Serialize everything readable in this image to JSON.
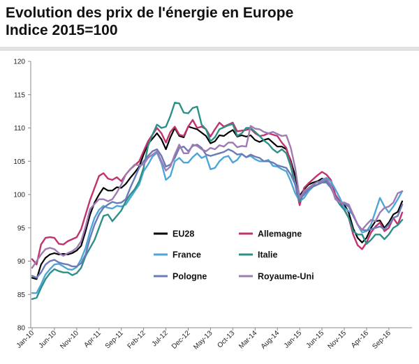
{
  "header": {
    "title_line1": "Evolution des prix de l'énergie en Europe",
    "title_line2": "Indice 2015=100"
  },
  "chart_data": {
    "type": "line",
    "title": "Evolution des prix de l'énergie en Europe",
    "subtitle": "Indice 2015=100",
    "ylim": [
      80,
      120
    ],
    "yticks": [
      80,
      85,
      90,
      95,
      100,
      105,
      110,
      115,
      120
    ],
    "grid": false,
    "legend_position": "bottom-center",
    "x_tick_labels": [
      "Jan-10",
      "Jun-10",
      "Nov-10",
      "Apr-11",
      "Sep-11",
      "Feb-12",
      "Jul-12",
      "Dec-12",
      "May-13",
      "Oct-13",
      "Mar-14",
      "Aug-14",
      "Jan-15",
      "Jun-15",
      "Nov-15",
      "Apr-16",
      "Sep-16"
    ],
    "x": [
      "Jan-10",
      "Feb-10",
      "Mar-10",
      "Apr-10",
      "May-10",
      "Jun-10",
      "Jul-10",
      "Aug-10",
      "Sep-10",
      "Oct-10",
      "Nov-10",
      "Dec-10",
      "Jan-11",
      "Feb-11",
      "Mar-11",
      "Apr-11",
      "May-11",
      "Jun-11",
      "Jul-11",
      "Aug-11",
      "Sep-11",
      "Oct-11",
      "Nov-11",
      "Dec-11",
      "Jan-12",
      "Feb-12",
      "Mar-12",
      "Apr-12",
      "May-12",
      "Jun-12",
      "Jul-12",
      "Aug-12",
      "Sep-12",
      "Oct-12",
      "Nov-12",
      "Dec-12",
      "Jan-13",
      "Feb-13",
      "Mar-13",
      "Apr-13",
      "May-13",
      "Jun-13",
      "Jul-13",
      "Aug-13",
      "Sep-13",
      "Oct-13",
      "Nov-13",
      "Dec-13",
      "Jan-14",
      "Feb-14",
      "Mar-14",
      "Apr-14",
      "May-14",
      "Jun-14",
      "Jul-14",
      "Aug-14",
      "Sep-14",
      "Oct-14",
      "Nov-14",
      "Dec-14",
      "Jan-15",
      "Feb-15",
      "Mar-15",
      "Apr-15",
      "May-15",
      "Jun-15",
      "Jul-15",
      "Aug-15",
      "Sep-15",
      "Oct-15",
      "Nov-15",
      "Dec-15",
      "Jan-16",
      "Feb-16",
      "Mar-16",
      "Apr-16",
      "May-16",
      "Jun-16",
      "Jul-16",
      "Aug-16",
      "Sep-16",
      "Oct-16",
      "Nov-16",
      "Dec-16"
    ],
    "series": [
      {
        "name": "EU28",
        "color": "#000000",
        "values": [
          87.5,
          87.3,
          89.5,
          90.5,
          91.0,
          91.2,
          91.0,
          91.1,
          91.0,
          91.2,
          91.6,
          92.3,
          94.5,
          97.0,
          98.8,
          100.0,
          101.0,
          100.6,
          100.6,
          101.1,
          101.0,
          101.6,
          102.5,
          103.3,
          104.2,
          106.0,
          107.6,
          108.4,
          109.2,
          108.3,
          106.8,
          108.6,
          110.0,
          108.8,
          108.6,
          110.2,
          110.0,
          109.8,
          109.3,
          108.8,
          107.7,
          108.0,
          108.9,
          108.8,
          109.3,
          109.7,
          108.7,
          108.9,
          108.7,
          108.9,
          108.2,
          107.9,
          108.2,
          108.4,
          107.8,
          107.2,
          107.2,
          106.8,
          105.1,
          102.8,
          99.8,
          100.8,
          101.5,
          101.8,
          102.0,
          102.4,
          102.2,
          101.3,
          99.8,
          99.0,
          98.5,
          97.3,
          94.9,
          93.5,
          92.8,
          93.5,
          95.0,
          96.0,
          96.1,
          95.0,
          95.8,
          97.0,
          97.4,
          99.0
        ]
      },
      {
        "name": "Allemagne",
        "color": "#c0336f",
        "values": [
          90.3,
          89.5,
          92.5,
          93.5,
          93.6,
          93.5,
          92.6,
          92.5,
          93.0,
          93.3,
          93.6,
          94.8,
          97.0,
          99.2,
          101.0,
          102.8,
          103.2,
          102.4,
          102.2,
          102.6,
          102.0,
          103.0,
          103.8,
          104.4,
          105.0,
          106.5,
          108.0,
          109.0,
          110.0,
          109.2,
          107.8,
          109.4,
          110.2,
          109.0,
          108.8,
          110.2,
          111.2,
          110.0,
          110.2,
          109.8,
          108.7,
          109.8,
          110.8,
          110.2,
          110.5,
          110.8,
          109.5,
          109.6,
          109.7,
          109.9,
          109.2,
          108.8,
          108.9,
          109.2,
          109.0,
          108.8,
          107.8,
          107.0,
          104.8,
          101.5,
          98.4,
          101.0,
          101.7,
          102.3,
          102.9,
          103.4,
          103.0,
          102.2,
          100.0,
          99.0,
          97.8,
          96.5,
          94.0,
          92.4,
          91.8,
          92.8,
          94.3,
          95.2,
          95.8,
          94.5,
          95.0,
          96.5,
          95.5,
          97.3
        ]
      },
      {
        "name": "France",
        "color": "#4ea6d8",
        "values": [
          85.2,
          85.2,
          86.5,
          88.0,
          88.8,
          89.5,
          89.6,
          89.2,
          88.8,
          88.7,
          89.1,
          90.3,
          92.0,
          94.5,
          96.5,
          97.7,
          98.3,
          98.0,
          97.9,
          98.3,
          98.2,
          98.5,
          99.5,
          100.5,
          101.5,
          103.5,
          104.5,
          105.7,
          106.3,
          104.7,
          102.2,
          102.8,
          105.0,
          105.5,
          104.8,
          104.8,
          105.6,
          106.2,
          105.5,
          105.8,
          103.8,
          104.0,
          105.0,
          105.6,
          105.8,
          104.8,
          105.2,
          106.1,
          105.6,
          105.8,
          105.3,
          105.0,
          105.0,
          105.2,
          104.3,
          104.2,
          103.8,
          103.5,
          102.0,
          100.2,
          99.0,
          99.5,
          100.5,
          101.2,
          101.5,
          102.2,
          102.5,
          102.0,
          100.8,
          99.5,
          98.0,
          97.5,
          97.0,
          95.5,
          94.3,
          94.5,
          95.5,
          97.5,
          99.5,
          98.2,
          97.3,
          98.2,
          99.3,
          100.5
        ]
      },
      {
        "name": "Italie",
        "color": "#2d9088",
        "values": [
          84.3,
          84.5,
          86.0,
          87.3,
          88.2,
          88.8,
          88.5,
          88.3,
          88.3,
          87.9,
          88.2,
          89.0,
          90.8,
          92.0,
          93.2,
          95.0,
          96.8,
          97.0,
          96.0,
          96.8,
          97.6,
          99.0,
          100.0,
          100.8,
          102.0,
          104.0,
          107.3,
          109.0,
          110.5,
          110.0,
          110.2,
          111.8,
          113.8,
          113.7,
          112.3,
          112.2,
          113.0,
          113.2,
          110.5,
          109.8,
          108.0,
          108.6,
          109.8,
          110.1,
          110.4,
          110.6,
          108.8,
          109.2,
          110.0,
          110.0,
          109.4,
          108.8,
          108.1,
          107.6,
          106.8,
          106.3,
          106.8,
          106.2,
          104.2,
          101.5,
          99.0,
          100.2,
          100.8,
          101.2,
          101.5,
          101.8,
          102.0,
          101.2,
          99.5,
          98.5,
          97.7,
          96.5,
          94.5,
          94.0,
          94.0,
          92.6,
          93.2,
          94.0,
          94.0,
          93.3,
          94.0,
          95.0,
          95.4,
          96.2
        ]
      },
      {
        "name": "Pologne",
        "color": "#6a7bb8",
        "values": [
          87.8,
          87.5,
          88.3,
          89.5,
          90.0,
          90.2,
          89.8,
          89.6,
          89.5,
          89.2,
          89.2,
          89.7,
          91.0,
          93.5,
          95.5,
          97.0,
          98.0,
          98.5,
          98.9,
          98.7,
          98.8,
          99.3,
          101.0,
          102.5,
          104.0,
          105.0,
          105.8,
          106.5,
          106.8,
          105.8,
          104.2,
          104.5,
          105.5,
          107.0,
          107.2,
          106.5,
          107.3,
          107.5,
          107.0,
          106.0,
          105.8,
          106.0,
          106.2,
          106.4,
          106.8,
          106.5,
          106.0,
          106.1,
          105.6,
          106.0,
          105.7,
          105.5,
          105.0,
          105.0,
          104.8,
          104.4,
          104.2,
          104.0,
          103.0,
          101.5,
          99.3,
          100.0,
          100.8,
          101.3,
          101.5,
          101.8,
          101.8,
          101.0,
          99.7,
          98.8,
          98.6,
          98.2,
          96.8,
          95.5,
          94.7,
          94.6,
          94.8,
          95.0,
          95.2,
          94.8,
          95.5,
          96.5,
          96.8,
          98.5
        ]
      },
      {
        "name": "Royaume-Uni",
        "color": "#9f7bb3",
        "values": [
          89.0,
          90.0,
          91.0,
          91.8,
          92.0,
          91.8,
          91.2,
          90.8,
          91.2,
          91.5,
          92.0,
          93.0,
          95.2,
          97.8,
          98.6,
          99.3,
          99.3,
          99.0,
          99.3,
          100.3,
          101.5,
          103.0,
          103.8,
          104.5,
          104.4,
          104.5,
          105.5,
          106.0,
          106.5,
          105.0,
          103.6,
          104.2,
          106.0,
          107.5,
          106.2,
          106.2,
          107.5,
          107.3,
          106.8,
          106.5,
          107.0,
          106.8,
          107.4,
          107.2,
          107.8,
          107.8,
          107.1,
          107.3,
          107.2,
          110.3,
          109.9,
          109.8,
          109.4,
          109.2,
          109.4,
          109.1,
          108.8,
          108.9,
          107.0,
          104.0,
          99.5,
          100.5,
          101.0,
          101.5,
          101.9,
          102.0,
          102.3,
          101.5,
          99.3,
          98.8,
          98.8,
          98.5,
          97.0,
          95.5,
          94.7,
          95.5,
          96.2,
          96.0,
          97.3,
          98.0,
          98.2,
          98.8,
          100.2,
          100.5
        ]
      }
    ]
  },
  "legend": [
    {
      "label": "EU28",
      "color": "#000000"
    },
    {
      "label": "Allemagne",
      "color": "#c0336f"
    },
    {
      "label": "France",
      "color": "#4ea6d8"
    },
    {
      "label": "Italie",
      "color": "#2d9088"
    },
    {
      "label": "Pologne",
      "color": "#6a7bb8"
    },
    {
      "label": "Royaume-Uni",
      "color": "#9f7bb3"
    }
  ]
}
